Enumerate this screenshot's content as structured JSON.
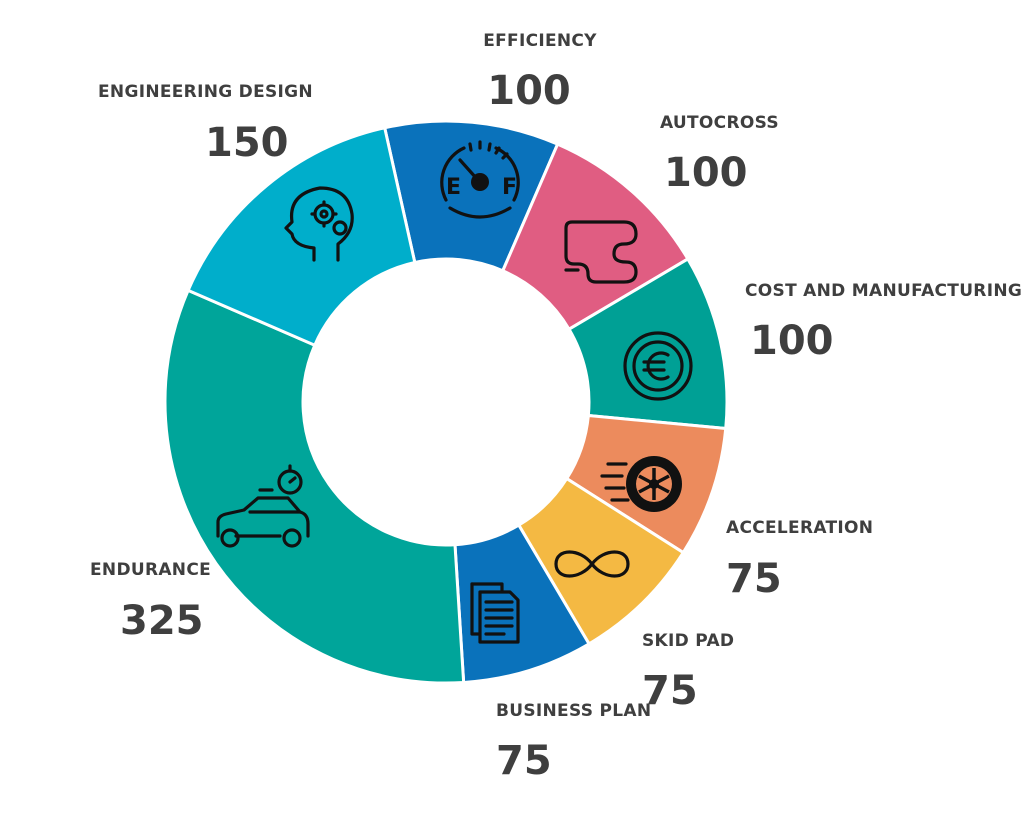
{
  "chart_data": {
    "type": "pie",
    "donut": true,
    "start_angle_deg": -12.6,
    "total": 1000,
    "slices": [
      {
        "label": "EFFICIENCY",
        "value": 100,
        "color": "#0a72bb",
        "icon": "fuel-gauge-icon"
      },
      {
        "label": "AUTOCROSS",
        "value": 100,
        "color": "#e05d82",
        "icon": "track-icon"
      },
      {
        "label": "COST AND MANUFACTURING",
        "value": 100,
        "color": "#00a095",
        "icon": "euro-coin-icon"
      },
      {
        "label": "ACCELERATION",
        "value": 75,
        "color": "#ec8b5d",
        "icon": "speeding-wheel-icon"
      },
      {
        "label": "SKID PAD",
        "value": 75,
        "color": "#f4b943",
        "icon": "infinity-icon"
      },
      {
        "label": "BUSINESS PLAN",
        "value": 75,
        "color": "#0a72bb",
        "icon": "documents-icon"
      },
      {
        "label": "ENDURANCE",
        "value": 325,
        "color": "#00a59a",
        "icon": "race-car-stopwatch-icon"
      },
      {
        "label": "ENGINEERING DESIGN",
        "value": 150,
        "color": "#00aecb",
        "icon": "head-gears-icon"
      }
    ]
  }
}
